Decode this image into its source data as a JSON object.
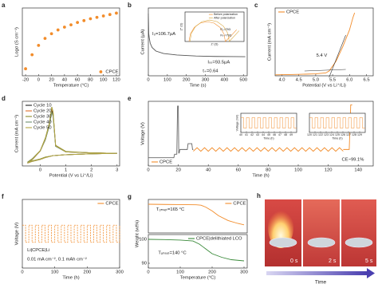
{
  "chart_data": [
    {
      "panel": "a",
      "type": "scatter",
      "xlabel": "Temperature (°C)",
      "ylabel": "Logσ (S cm⁻¹)",
      "xlim": [
        -25,
        125
      ],
      "ylim": [
        -4.4,
        -2.95
      ],
      "xticks": [
        -20,
        0,
        20,
        40,
        60,
        80,
        100,
        120
      ],
      "legend": "lower right",
      "series": [
        {
          "name": "CPCE",
          "color": "#f28c2a",
          "style": "scatter",
          "x": [
            -20,
            -10,
            0,
            10,
            20,
            30,
            40,
            50,
            60,
            70,
            80,
            90,
            100,
            110,
            120
          ],
          "values": [
            -4.25,
            -3.95,
            -3.75,
            -3.6,
            -3.5,
            -3.42,
            -3.36,
            -3.31,
            -3.26,
            -3.22,
            -3.18,
            -3.15,
            -3.12,
            -3.09,
            -3.06
          ]
        }
      ],
      "annotations": []
    },
    {
      "panel": "b",
      "type": "line",
      "xlabel": "Time (s)",
      "ylabel": "Current (μA)",
      "xlim": [
        0,
        520
      ],
      "ylim": [
        80,
        128
      ],
      "xticks": [
        0,
        100,
        200,
        300,
        400,
        500
      ],
      "series": [
        {
          "color": "#555555",
          "style": "line",
          "x": [
            0,
            2,
            5,
            10,
            20,
            40,
            80,
            150,
            250,
            350,
            450,
            510
          ],
          "values": [
            124,
            110,
            106.7,
            103,
            100,
            97.5,
            95.8,
            94.7,
            94,
            93.7,
            93.6,
            93.5
          ]
        }
      ],
      "annotations": [
        "I₀=106.7μA",
        "Iₛₛ=93.5μA",
        "t₊=0.64"
      ],
      "inset": {
        "type": "line",
        "xlabel": "Z' (Ω)",
        "ylabel": "Z'' (Ω)",
        "xlim": [
          0,
          120
        ],
        "ylim": [
          0,
          55
        ],
        "legend": "upper right",
        "series": [
          {
            "name": "Before polarization",
            "color": "#f28c2a",
            "style": "line",
            "x": [
              8,
              10.8,
              18.8,
              30.8,
              45,
              59.2,
              71.2,
              79.2,
              82,
              95,
              105
            ],
            "values": [
              0,
              14.2,
              26.2,
              34.2,
              37,
              34.2,
              26.2,
              14.2,
              0,
              12,
              22
            ]
          },
          {
            "name": "After polarization",
            "color": "#d6a53a",
            "style": "line",
            "x": [
              10,
              13,
              21.7,
              34.7,
              50,
              65.3,
              78.3,
              87,
              90,
              100,
              110
            ],
            "values": [
              0,
              15.3,
              28.3,
              37,
              40,
              37,
              28.3,
              15.3,
              0,
              10,
              20
            ]
          }
        ],
        "annotations": [
          "R₀=75Ω",
          "Rₛₛ=79Ω"
        ]
      }
    },
    {
      "panel": "c",
      "type": "line",
      "xlabel": "Potential (V vs Li⁺/Li)",
      "ylabel": "Current (mA cm⁻²)",
      "xlim": [
        3.8,
        6.7
      ],
      "ylim": [
        0,
        1.4
      ],
      "legend": "upper left",
      "xticks": [
        {
          "value": 4,
          "label": "4.0"
        },
        4.5,
        {
          "value": 5,
          "label": "5.0"
        },
        5.5,
        {
          "value": 6,
          "label": "6.0"
        },
        6.5
      ],
      "series": [
        {
          "name": "CPCE",
          "color": "#f28c2a",
          "style": "line",
          "x": [
            3.8,
            4.5,
            5.0,
            5.3,
            5.4,
            5.6,
            5.8,
            6.0,
            6.1,
            6.15
          ],
          "values": [
            0.02,
            0.03,
            0.04,
            0.06,
            0.1,
            0.3,
            0.6,
            0.95,
            1.2,
            1.3
          ]
        }
      ],
      "annotations": [
        "5.4 V"
      ]
    },
    {
      "panel": "d",
      "type": "line",
      "xlabel": "Potential (V vs Li⁺/Li)",
      "ylabel": "Current (mA cm⁻²)",
      "xlim": [
        -0.7,
        3.1
      ],
      "ylim": [
        -1.3,
        5.6
      ],
      "xticks": [
        0,
        1,
        2,
        3
      ],
      "legend": "upper left",
      "x": [
        -0.5,
        -0.3,
        0,
        0.2,
        0.35,
        0.45,
        0.5,
        0.6,
        1,
        2,
        3,
        2,
        1,
        0.5,
        0.2,
        0,
        -0.3,
        -0.5
      ],
      "series": [
        {
          "name": "Cycle 10",
          "color": "#222222",
          "style": "line",
          "values": [
            -1.0,
            -0.6,
            0.3,
            1.5,
            3.0,
            4.6,
            4.2,
            0.8,
            0.2,
            0.1,
            0.05,
            0.0,
            -0.1,
            -0.2,
            -0.4,
            -0.6,
            -0.8,
            -1.0
          ]
        },
        {
          "name": "Cycle 20",
          "color": "#e0702a",
          "style": "line",
          "values": [
            -1.0,
            -0.6,
            0.3,
            1.6,
            3.1,
            4.8,
            4.4,
            0.9,
            0.2,
            0.1,
            0.05,
            0.0,
            -0.1,
            -0.2,
            -0.4,
            -0.6,
            -0.8,
            -1.0
          ]
        },
        {
          "name": "Cycle 30",
          "color": "#8a8a2a",
          "style": "line",
          "values": [
            -0.9,
            -0.5,
            0.35,
            1.7,
            3.2,
            5.0,
            4.5,
            0.9,
            0.25,
            0.1,
            0.05,
            0.0,
            -0.1,
            -0.2,
            -0.35,
            -0.55,
            -0.75,
            -0.9
          ]
        },
        {
          "name": "Cycle 40",
          "color": "#6f8f6f",
          "style": "line",
          "values": [
            -0.95,
            -0.55,
            0.3,
            1.5,
            2.9,
            4.4,
            4.0,
            0.8,
            0.2,
            0.1,
            0.05,
            0.0,
            -0.1,
            -0.2,
            -0.4,
            -0.6,
            -0.8,
            -0.95
          ]
        },
        {
          "name": "Cycle 50",
          "color": "#b5a642",
          "style": "line",
          "values": [
            -1.0,
            -0.6,
            0.32,
            1.6,
            3.1,
            4.9,
            4.5,
            0.85,
            0.2,
            0.1,
            0.05,
            0.0,
            -0.1,
            -0.2,
            -0.4,
            -0.6,
            -0.8,
            -1.0
          ]
        }
      ],
      "annotations": []
    },
    {
      "panel": "e",
      "type": "line",
      "xlabel": "Time (h)",
      "ylabel": "Voltage (V)",
      "xlim": [
        0,
        150
      ],
      "ylim": [
        -0.5,
        5
      ],
      "xticks": [
        0,
        20,
        40,
        60,
        80,
        100,
        120,
        140
      ],
      "legend": "lower left",
      "series": [
        {
          "color": "#666666",
          "style": "line",
          "x": [
            0,
            17,
            17.5,
            19,
            19.5,
            20,
            20.3,
            20.6,
            21,
            26,
            26.5,
            29,
            29.5,
            30
          ],
          "values": [
            0.2,
            0.2,
            0.5,
            0.5,
            4.6,
            4.6,
            0.6,
            0.6,
            0.9,
            0.9,
            1.4,
            1.4,
            0.9,
            0.9
          ]
        },
        {
          "name": "CPCE",
          "color": "#f28c2a",
          "style": "line",
          "x": [
            30,
            32.5,
            35,
            37.5,
            40,
            42.5,
            45,
            47.5,
            50,
            52.5,
            55,
            57.5,
            60,
            62.5,
            65,
            67.5,
            70,
            72.5,
            75,
            77.5,
            80,
            82.5,
            85,
            87.5,
            90,
            92.5,
            95,
            97.5,
            100,
            102.5,
            105,
            107.5,
            110,
            112.5,
            115,
            117.5,
            120,
            122.5,
            125,
            127.5,
            130
          ],
          "values": [
            0.75,
            1.05,
            0.75,
            1.05,
            0.75,
            1.05,
            0.75,
            1.05,
            0.75,
            1.05,
            0.75,
            1.05,
            0.75,
            1.05,
            0.75,
            1.05,
            0.75,
            1.05,
            0.75,
            1.05,
            0.75,
            1.05,
            0.75,
            1.05,
            0.75,
            1.05,
            0.75,
            1.05,
            0.75,
            1.05,
            0.75,
            1.05,
            0.75,
            1.05,
            0.75,
            1.05,
            0.75,
            1.05,
            0.75,
            1.05,
            0.75
          ]
        },
        {
          "color": "#f28c2a",
          "style": "line",
          "x": [
            130,
            134,
            135,
            136
          ],
          "values": [
            0.9,
            0.9,
            4.7,
            4.7
          ]
        }
      ],
      "annotations": [
        "CE~99.1%"
      ],
      "insets": [
        {
          "type": "line",
          "xlabel": "Time (h)",
          "ylabel": "Voltage (mV)",
          "xlim": [
            40,
            50
          ],
          "ylim": [
            -0.4,
            1.4
          ],
          "xticks": [
            40,
            41,
            42,
            43,
            44,
            45,
            46,
            47,
            48,
            49
          ],
          "series": [
            {
              "color": "#f28c2a",
              "style": "step",
              "x": [
                40,
                40.5,
                41,
                41.5,
                42,
                42.5,
                43,
                43.5,
                44,
                44.5,
                45,
                45.5,
                46,
                46.5,
                47,
                47.5,
                48,
                48.5,
                49,
                49.5
              ],
              "values": [
                1,
                0,
                1,
                0,
                1,
                0,
                1,
                0,
                1,
                0,
                1,
                0,
                1,
                0,
                1,
                0,
                1,
                0,
                1,
                0
              ]
            }
          ]
        },
        {
          "type": "line",
          "xlabel": "Time (h)",
          "xlim": [
            120,
            130
          ],
          "ylim": [
            -0.4,
            1.4
          ],
          "xticks": [
            120,
            121,
            122,
            123,
            124,
            125,
            126,
            127,
            128,
            129
          ],
          "series": [
            {
              "color": "#f28c2a",
              "style": "step",
              "x": [
                120,
                120.5,
                121,
                121.5,
                122,
                122.5,
                123,
                123.5,
                124,
                124.5,
                125,
                125.5,
                126,
                126.5,
                127,
                127.5,
                128,
                128.5,
                129,
                129.5
              ],
              "values": [
                1,
                0,
                1,
                0,
                1,
                0,
                1,
                0,
                1,
                0,
                1,
                0,
                1,
                0,
                1,
                0,
                1,
                0,
                1,
                0
              ]
            }
          ]
        }
      ]
    },
    {
      "panel": "f",
      "type": "line",
      "xlabel": "Time (h)",
      "ylabel": "Voltage (V)",
      "xlim": [
        0,
        300
      ],
      "ylim": [
        -0.12,
        0.12
      ],
      "xticks": [
        0,
        100,
        200,
        300
      ],
      "legend": "upper right",
      "series": [
        {
          "name": "CPCE",
          "color": "#f28c2a",
          "style": "step",
          "dash": true,
          "x": [
            0,
            10,
            20,
            30,
            40,
            50,
            60,
            70,
            80,
            90,
            100,
            110,
            120,
            130,
            140,
            150,
            160,
            170,
            180,
            190,
            200,
            210,
            220,
            230,
            240,
            250,
            260,
            270,
            280,
            290,
            300
          ],
          "values": [
            0.03,
            -0.03,
            0.03,
            -0.03,
            0.03,
            -0.03,
            0.03,
            -0.03,
            0.03,
            -0.03,
            0.03,
            -0.03,
            0.03,
            -0.03,
            0.03,
            -0.03,
            0.03,
            -0.03,
            0.03,
            -0.03,
            0.03,
            -0.03,
            0.03,
            -0.03,
            0.03,
            -0.03,
            0.03,
            -0.03,
            0.03,
            -0.03,
            0.03
          ]
        }
      ],
      "annotations": [
        "Li|CPCE|Li",
        "0.01 mA cm⁻², 0.1 mAh cm⁻²"
      ]
    },
    {
      "panel": "g",
      "type": "line",
      "xlim": [
        0,
        310
      ],
      "ylim": [
        70,
        105
      ],
      "legend": "upper right",
      "series": [
        {
          "name": "CPCE",
          "color": "#f28c2a",
          "style": "line",
          "x": [
            0,
            50,
            100,
            150,
            165,
            180,
            200,
            220,
            250,
            280,
            300
          ],
          "values": [
            100,
            99.8,
            99.6,
            99.4,
            99,
            97,
            93,
            88,
            83,
            80,
            78.5
          ]
        }
      ],
      "annotations": [
        "Tₒₙₛₑₜ=165 °C"
      ]
    },
    {
      "type": "line",
      "xlabel": "Temperature (°C)",
      "ylabel": "Weight (wt%)",
      "xlim": [
        0,
        310
      ],
      "ylim": [
        88,
        102
      ],
      "xticks": [
        0,
        100,
        200,
        300
      ],
      "yticks": [
        90,
        100
      ],
      "legend": "upper right",
      "series": [
        {
          "name": "CPCE|delithiated LCO",
          "color": "#3a8a3a",
          "style": "line",
          "x": [
            0,
            50,
            100,
            140,
            160,
            180,
            200,
            230,
            260,
            300
          ],
          "values": [
            100,
            99.9,
            99.7,
            99.3,
            98,
            96,
            94,
            92.5,
            91.5,
            91
          ]
        }
      ],
      "annotations": [
        "Tₒₙₛₑₜ=140 °C"
      ]
    }
  ],
  "photos": {
    "panel": "h",
    "labels": [
      "0 s",
      "2 s",
      "5 s"
    ],
    "arrow_label": "Time"
  }
}
